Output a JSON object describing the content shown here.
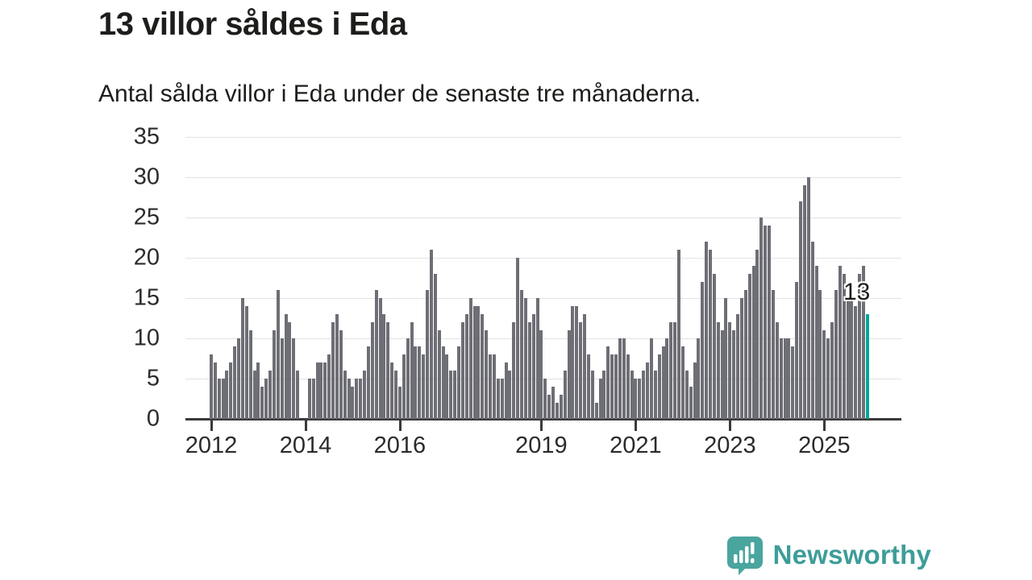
{
  "header": {
    "title": "13 villor såldes i Eda",
    "subtitle": "Antal sålda villor i Eda under de senaste tre månaderna."
  },
  "chart_data": {
    "type": "bar",
    "title": "13 villor såldes i Eda",
    "subtitle": "Antal sålda villor i Eda under de senaste tre månaderna.",
    "x_start": "2012-01",
    "frequency": "monthly",
    "ylim": [
      0,
      35
    ],
    "grid": true,
    "y_ticks": [
      0,
      5,
      10,
      15,
      20,
      25,
      30,
      35
    ],
    "x_ticks": [
      {
        "label": "2012",
        "month_index": 0
      },
      {
        "label": "2014",
        "month_index": 24
      },
      {
        "label": "2016",
        "month_index": 48
      },
      {
        "label": "2019",
        "month_index": 84
      },
      {
        "label": "2021",
        "month_index": 108
      },
      {
        "label": "2023",
        "month_index": 132
      },
      {
        "label": "2025",
        "month_index": 156
      }
    ],
    "values": [
      8,
      7,
      5,
      5,
      6,
      7,
      9,
      10,
      15,
      14,
      11,
      6,
      7,
      4,
      5,
      6,
      11,
      16,
      10,
      13,
      12,
      10,
      6,
      0,
      0,
      5,
      5,
      7,
      7,
      7,
      8,
      12,
      13,
      11,
      6,
      5,
      4,
      5,
      5,
      6,
      9,
      12,
      16,
      15,
      13,
      12,
      7,
      6,
      4,
      8,
      10,
      12,
      9,
      9,
      8,
      16,
      21,
      18,
      11,
      9,
      8,
      6,
      6,
      9,
      12,
      13,
      15,
      14,
      14,
      13,
      11,
      8,
      8,
      5,
      5,
      7,
      6,
      12,
      20,
      16,
      15,
      12,
      13,
      15,
      11,
      5,
      3,
      4,
      2,
      3,
      6,
      11,
      14,
      14,
      12,
      13,
      8,
      6,
      2,
      5,
      6,
      9,
      8,
      8,
      10,
      10,
      8,
      6,
      5,
      5,
      6,
      7,
      10,
      6,
      8,
      9,
      10,
      12,
      12,
      21,
      9,
      6,
      4,
      7,
      10,
      17,
      22,
      21,
      18,
      12,
      11,
      15,
      12,
      11,
      13,
      15,
      16,
      18,
      19,
      21,
      25,
      24,
      24,
      16,
      12,
      10,
      10,
      10,
      9,
      17,
      27,
      29,
      30,
      22,
      19,
      16,
      11,
      10,
      12,
      16,
      19,
      18,
      15,
      17,
      14,
      18,
      19,
      13
    ],
    "bar_color": "#6e6e76",
    "highlight_color": "#00a69a",
    "highlight_index_from_end": 1,
    "annotation_label": "13"
  },
  "footer": {
    "brand": "Newsworthy",
    "brand_color": "#3d9d98",
    "logo_icon": "bar-chart-speech-bubble-icon",
    "logo_color": "#4aa59f"
  }
}
